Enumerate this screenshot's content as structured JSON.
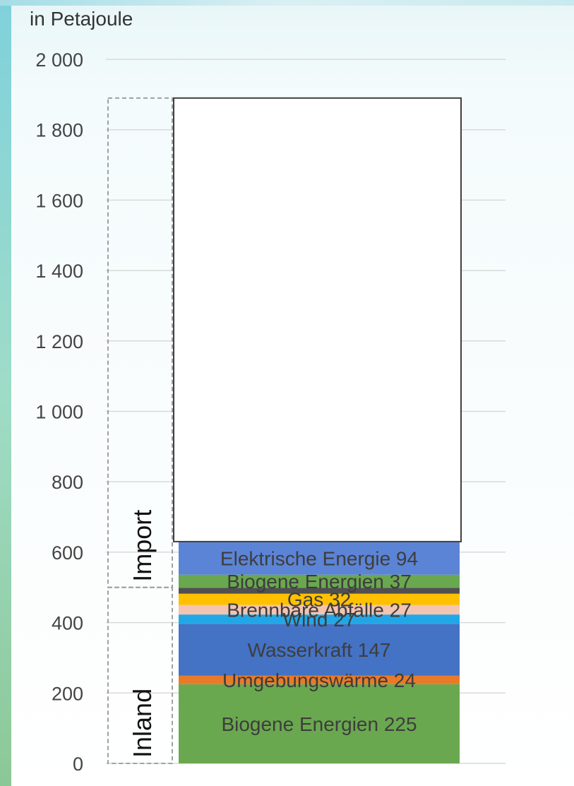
{
  "chart_data": {
    "type": "bar",
    "stacked": true,
    "ylabel": "in Petajoule",
    "ylim": [
      0,
      2000
    ],
    "yticks": [
      "0",
      "200",
      "400",
      "600",
      "800",
      "1 000",
      "1 200",
      "1 400",
      "1 600",
      "1 800",
      "2 000"
    ],
    "ytick_values": [
      0,
      200,
      400,
      600,
      800,
      1000,
      1200,
      1400,
      1600,
      1800,
      2000
    ],
    "grid": true,
    "groups": [
      {
        "label": "Inland",
        "from": 0,
        "to": 500
      },
      {
        "label": "Import",
        "from": 500,
        "to": 1890
      }
    ],
    "segments": [
      {
        "label": "Biogene Energien 225",
        "value": 225,
        "color": "#6aa84f"
      },
      {
        "label": "Umgebungswärme 24",
        "value": 24,
        "color": "#e87a2a"
      },
      {
        "label": "Wasserkraft 147",
        "value": 147,
        "color": "#4472c4"
      },
      {
        "label": "Wind 27",
        "value": 27,
        "color": "#22a7e6"
      },
      {
        "label": "Brennbare Abfälle 27",
        "value": 27,
        "color": "#f4c4b0"
      },
      {
        "label": "Gas 32",
        "value": 32,
        "color": "#ffc000"
      },
      {
        "label": "",
        "value": 17,
        "color": "#505050"
      },
      {
        "label": "Biogene Energien 37",
        "value": 37,
        "color": "#6aa84f"
      },
      {
        "label": "Elektrische Energie 94",
        "value": 94,
        "color": "#5b84d6"
      },
      {
        "label": "",
        "value": 1260,
        "color": "#ffffff"
      }
    ]
  }
}
